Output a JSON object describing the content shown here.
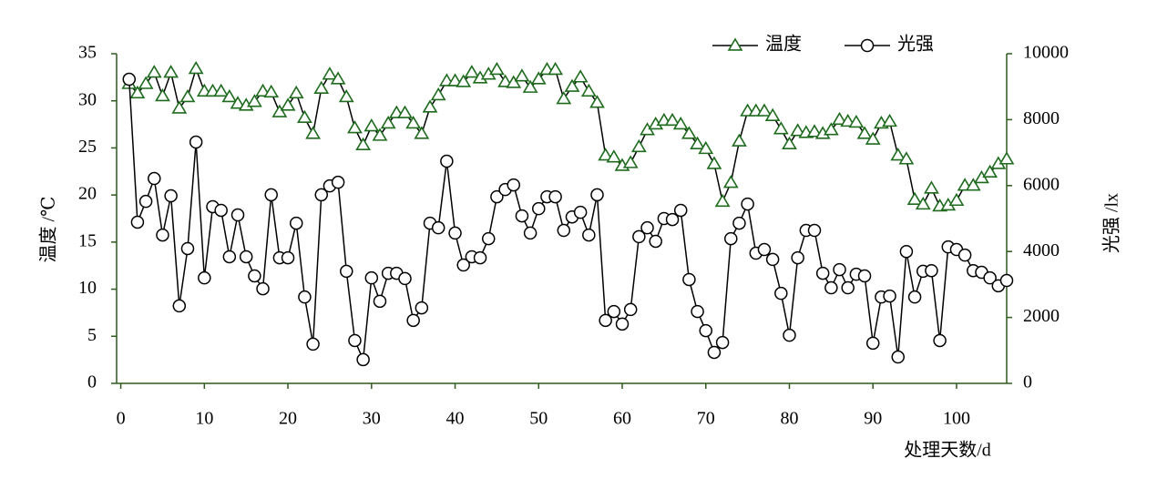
{
  "chart_data": {
    "type": "line",
    "x_label": "处理天数/d",
    "y_label": "温度 /℃",
    "y2_label": "光强 /lx",
    "xlim": [
      -0.5,
      106
    ],
    "xticks": [
      0,
      10,
      20,
      30,
      40,
      50,
      60,
      70,
      80,
      90,
      100
    ],
    "ylim": [
      0,
      35
    ],
    "yticks": [
      0,
      5,
      10,
      15,
      20,
      25,
      30,
      35
    ],
    "y2lim": [
      0,
      10000
    ],
    "y2ticks": [
      0,
      2000,
      4000,
      6000,
      8000,
      10000
    ],
    "axis_color": "#2f5a1e",
    "legend": "upper right",
    "x": [
      1,
      2,
      3,
      4,
      5,
      6,
      7,
      8,
      9,
      10,
      11,
      12,
      13,
      14,
      15,
      16,
      17,
      18,
      19,
      20,
      21,
      22,
      23,
      24,
      25,
      26,
      27,
      28,
      29,
      30,
      31,
      32,
      33,
      34,
      35,
      36,
      37,
      38,
      39,
      40,
      41,
      42,
      43,
      44,
      45,
      46,
      47,
      48,
      49,
      50,
      51,
      52,
      53,
      54,
      55,
      56,
      57,
      58,
      59,
      60,
      61,
      62,
      63,
      64,
      65,
      66,
      67,
      68,
      69,
      70,
      71,
      72,
      73,
      74,
      75,
      76,
      77,
      78,
      79,
      80,
      81,
      82,
      83,
      84,
      85,
      86,
      87,
      88,
      89,
      90,
      91,
      92,
      93,
      94,
      95,
      96,
      97,
      98,
      99,
      100,
      101,
      102,
      103,
      104,
      105,
      106
    ],
    "series": [
      {
        "name": "温度",
        "color": "#000000",
        "marker": "triangle",
        "marker_color": "#1e6b1e",
        "axis": "y",
        "values": [
          31.8,
          30.8,
          31.8,
          33,
          30.5,
          33,
          29.2,
          30.4,
          33.4,
          31,
          31,
          31,
          30.4,
          29.7,
          29.5,
          29.9,
          31,
          30.9,
          28.8,
          29.5,
          30.8,
          28.2,
          26.5,
          31.3,
          32.8,
          32.3,
          30.4,
          27.1,
          25.3,
          27.3,
          26.3,
          27.6,
          28.7,
          28.7,
          27.6,
          26.5,
          29.3,
          30.6,
          32.1,
          32.1,
          32,
          33,
          32.4,
          32.8,
          33.3,
          32,
          31.9,
          32.6,
          31.4,
          32.3,
          33.3,
          33.3,
          30.2,
          31.5,
          32.5,
          31,
          29.8,
          24.2,
          24,
          23.1,
          23.4,
          25.1,
          26.9,
          27.5,
          27.9,
          27.9,
          27.5,
          26.5,
          25.4,
          24.9,
          23.3,
          19.3,
          21.3,
          25.7,
          28.9,
          28.9,
          28.9,
          28.4,
          27,
          25.4,
          26.8,
          26.6,
          26.7,
          26.5,
          26.9,
          28,
          27.8,
          27.7,
          26.5,
          25.9,
          27.6,
          27.8,
          24.2,
          23.8,
          19.5,
          19,
          20.7,
          18.8,
          18.9,
          19.4,
          21,
          21,
          21.8,
          22.4,
          23.3,
          23.8
        ]
      },
      {
        "name": "光强",
        "color": "#000000",
        "marker": "circle",
        "marker_color": "#000000",
        "axis": "y2",
        "values": [
          9225,
          4890,
          5520,
          6215,
          4500,
          5690,
          2350,
          4090,
          7320,
          3200,
          5360,
          5250,
          3840,
          5110,
          3840,
          3260,
          2870,
          5720,
          3810,
          3810,
          4860,
          2620,
          1190,
          5720,
          5990,
          6100,
          3400,
          1300,
          720,
          3200,
          2490,
          3340,
          3340,
          3180,
          1910,
          2290,
          4860,
          4720,
          6740,
          4560,
          3590,
          3840,
          3810,
          4390,
          5660,
          5880,
          6020,
          5080,
          4560,
          5300,
          5660,
          5660,
          4640,
          5050,
          5190,
          4500,
          5720,
          1910,
          2180,
          1800,
          2240,
          4450,
          4720,
          4310,
          5000,
          4970,
          5250,
          3150,
          2180,
          1600,
          940,
          1240,
          4390,
          4860,
          5440,
          3950,
          4060,
          3760,
          2730,
          1460,
          3810,
          4640,
          4640,
          3340,
          2900,
          3450,
          2900,
          3310,
          3260,
          1220,
          2620,
          2650,
          800,
          4000,
          2620,
          3400,
          3420,
          1300,
          4140,
          4060,
          3890,
          3420,
          3370,
          3200,
          2960,
          3120
        ]
      }
    ]
  }
}
